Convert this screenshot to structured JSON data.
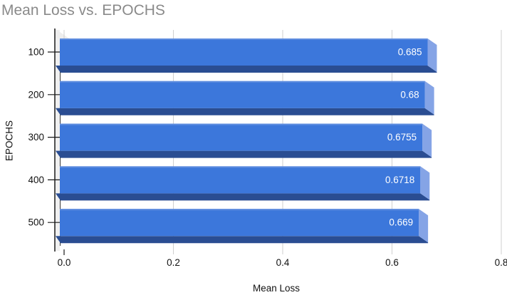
{
  "chart_data": {
    "type": "bar",
    "orientation": "horizontal",
    "style": "3d",
    "title": "Mean Loss vs. EPOCHS",
    "xlabel": "Mean Loss",
    "ylabel": "EPOCHS",
    "categories": [
      "100",
      "200",
      "300",
      "400",
      "500"
    ],
    "values": [
      0.685,
      0.68,
      0.6755,
      0.6718,
      0.669
    ],
    "value_labels": [
      "0.685",
      "0.68",
      "0.6755",
      "0.6718",
      "0.669"
    ],
    "xlim": [
      0,
      0.8
    ],
    "xticks": {
      "values": [
        0,
        0.2,
        0.4,
        0.6,
        0.8
      ],
      "labels": [
        "0.0",
        "0.2",
        "0.4",
        "0.6",
        "0.8"
      ]
    },
    "grid": "vertical-gridlines-on",
    "legend": "none",
    "colors": {
      "bar_front": "#3C77DB",
      "bar_side_cap": "#85A4E6",
      "bar_bottom_face": "#2A4D92",
      "bar_top_edge": "#5E8CDF",
      "gridline": "#cfcfcf",
      "axis_line": "#1a1a1a",
      "wall": "#f0f0f0",
      "title_text": "#8a8a8a",
      "tick_text": "#111111",
      "value_label_text": "#ffffff"
    }
  }
}
